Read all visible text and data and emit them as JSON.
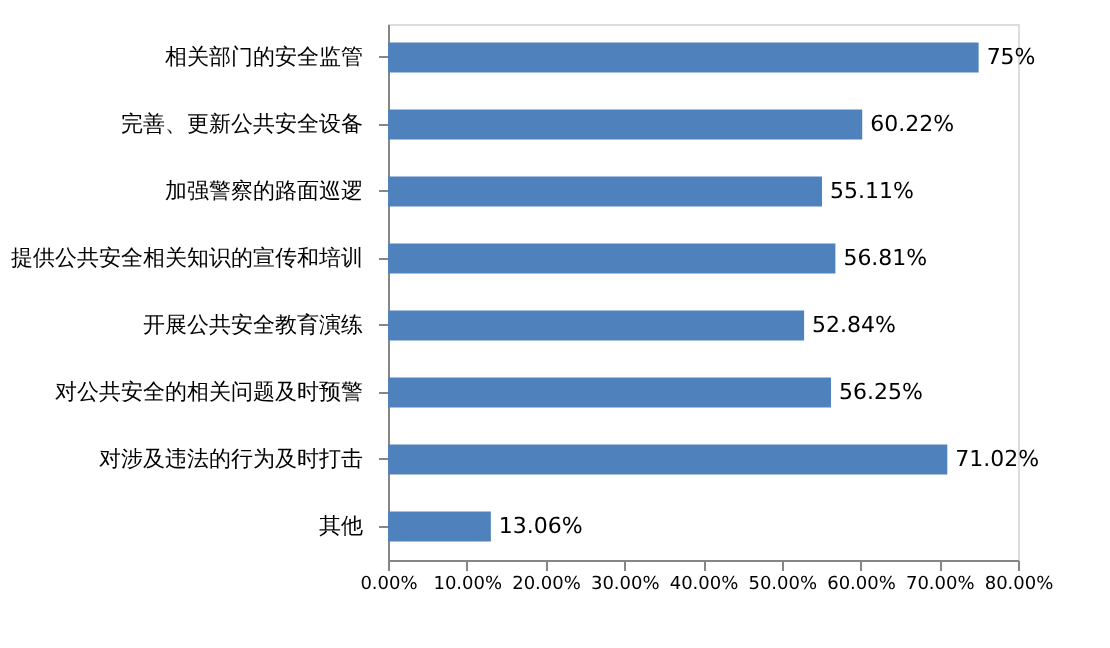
{
  "chart_data": {
    "type": "bar",
    "orientation": "horizontal",
    "categories": [
      "相关部门的安全监管",
      "完善、更新公共安全设备",
      "加强警察的路面巡逻",
      "提供公共安全相关知识的宣传和培训",
      "开展公共安全教育演练",
      "对公共安全的相关问题及时预警",
      "对涉及违法的行为及时打击",
      "其他"
    ],
    "values": [
      75,
      60.22,
      55.11,
      56.81,
      52.84,
      56.25,
      71.02,
      13.06
    ],
    "value_labels": [
      "75%",
      "60.22%",
      "55.11%",
      "56.81%",
      "52.84%",
      "56.25%",
      "71.02%",
      "13.06%"
    ],
    "color": "#4f81bd",
    "xlim": [
      0,
      80
    ],
    "xticks": [
      {
        "value": 0,
        "label": "0.00%"
      },
      {
        "value": 10,
        "label": "10.00%"
      },
      {
        "value": 20,
        "label": "20.00%"
      },
      {
        "value": 30,
        "label": "30.00%"
      },
      {
        "value": 40,
        "label": "40.00%"
      },
      {
        "value": 50,
        "label": "50.00%"
      },
      {
        "value": 60,
        "label": "60.00%"
      },
      {
        "value": 70,
        "label": "70.00%"
      },
      {
        "value": 80,
        "label": "80.00%"
      }
    ],
    "grid": false
  }
}
